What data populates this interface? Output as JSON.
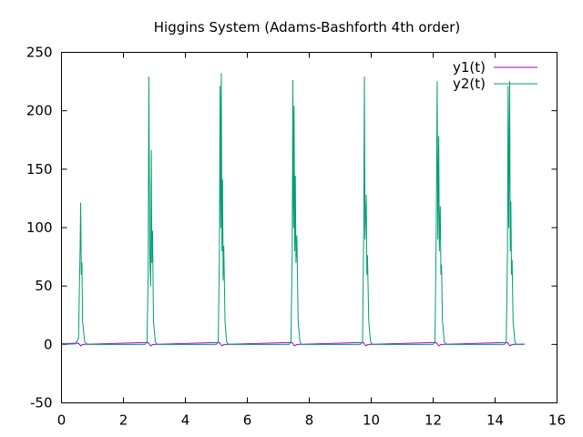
{
  "chart_data": {
    "type": "line",
    "title": "Higgins System (Adams-Bashforth 4th order)",
    "xlabel": "",
    "ylabel": "",
    "xlim": [
      0,
      16
    ],
    "ylim": [
      -50,
      250
    ],
    "xticks": [
      "0",
      "2",
      "4",
      "6",
      "8",
      "10",
      "12",
      "14",
      "16"
    ],
    "yticks": [
      "-50",
      "0",
      "50",
      "100",
      "150",
      "200",
      "250"
    ],
    "grid": false,
    "legend_position": "top-right",
    "colors": {
      "y1": "#9400d3",
      "y2": "#009e73"
    },
    "series": [
      {
        "name": "y1(t)",
        "points": [
          [
            0,
            0.6
          ],
          [
            0.55,
            1.0
          ],
          [
            0.62,
            -1.2
          ],
          [
            0.68,
            0.0
          ],
          [
            0.75,
            0.1
          ],
          [
            2.8,
            1.6
          ],
          [
            2.88,
            -1.2
          ],
          [
            2.95,
            0.0
          ],
          [
            3.05,
            0.1
          ],
          [
            5.1,
            1.6
          ],
          [
            5.18,
            -1.2
          ],
          [
            5.25,
            0.0
          ],
          [
            5.35,
            0.1
          ],
          [
            7.45,
            1.6
          ],
          [
            7.52,
            -1.2
          ],
          [
            7.6,
            0.0
          ],
          [
            7.7,
            0.1
          ],
          [
            9.75,
            1.6
          ],
          [
            9.82,
            -1.2
          ],
          [
            9.9,
            0.0
          ],
          [
            10.0,
            0.1
          ],
          [
            12.1,
            1.6
          ],
          [
            12.18,
            -1.2
          ],
          [
            12.25,
            0.0
          ],
          [
            12.35,
            0.1
          ],
          [
            14.4,
            1.6
          ],
          [
            14.48,
            -1.2
          ],
          [
            14.55,
            0.0
          ],
          [
            14.65,
            0.1
          ],
          [
            14.95,
            0.3
          ]
        ]
      },
      {
        "name": "y2(t)",
        "points": [
          [
            0,
            0
          ],
          [
            0.45,
            0.5
          ],
          [
            0.55,
            5
          ],
          [
            0.6,
            80
          ],
          [
            0.62,
            121
          ],
          [
            0.64,
            60
          ],
          [
            0.66,
            70
          ],
          [
            0.68,
            20
          ],
          [
            0.75,
            2
          ],
          [
            0.85,
            0
          ],
          [
            2.7,
            0
          ],
          [
            2.76,
            2
          ],
          [
            2.8,
            60
          ],
          [
            2.82,
            229
          ],
          [
            2.85,
            80
          ],
          [
            2.88,
            50
          ],
          [
            2.9,
            166
          ],
          [
            2.92,
            70
          ],
          [
            2.94,
            97
          ],
          [
            2.97,
            20
          ],
          [
            3.03,
            2
          ],
          [
            3.1,
            0
          ],
          [
            5.0,
            0
          ],
          [
            5.06,
            2
          ],
          [
            5.1,
            80
          ],
          [
            5.12,
            221
          ],
          [
            5.14,
            100
          ],
          [
            5.16,
            232
          ],
          [
            5.18,
            80
          ],
          [
            5.2,
            141
          ],
          [
            5.22,
            55
          ],
          [
            5.24,
            84
          ],
          [
            5.28,
            20
          ],
          [
            5.33,
            2
          ],
          [
            5.4,
            0
          ],
          [
            7.35,
            0
          ],
          [
            7.41,
            2
          ],
          [
            7.45,
            80
          ],
          [
            7.47,
            226
          ],
          [
            7.49,
            100
          ],
          [
            7.51,
            204
          ],
          [
            7.53,
            80
          ],
          [
            7.55,
            144
          ],
          [
            7.57,
            70
          ],
          [
            7.6,
            93
          ],
          [
            7.64,
            20
          ],
          [
            7.7,
            2
          ],
          [
            7.75,
            0
          ],
          [
            9.65,
            0
          ],
          [
            9.72,
            2
          ],
          [
            9.76,
            100
          ],
          [
            9.78,
            229
          ],
          [
            9.8,
            90
          ],
          [
            9.84,
            128
          ],
          [
            9.86,
            60
          ],
          [
            9.88,
            76
          ],
          [
            9.92,
            20
          ],
          [
            9.98,
            2
          ],
          [
            10.05,
            0
          ],
          [
            12.0,
            0
          ],
          [
            12.06,
            2
          ],
          [
            12.1,
            100
          ],
          [
            12.13,
            225
          ],
          [
            12.15,
            90
          ],
          [
            12.18,
            178
          ],
          [
            12.2,
            80
          ],
          [
            12.23,
            118
          ],
          [
            12.25,
            60
          ],
          [
            12.27,
            68
          ],
          [
            12.3,
            20
          ],
          [
            12.36,
            2
          ],
          [
            12.45,
            0
          ],
          [
            14.3,
            0
          ],
          [
            14.36,
            2
          ],
          [
            14.4,
            80
          ],
          [
            14.42,
            221
          ],
          [
            14.44,
            100
          ],
          [
            14.47,
            225
          ],
          [
            14.49,
            80
          ],
          [
            14.51,
            122
          ],
          [
            14.53,
            60
          ],
          [
            14.55,
            72
          ],
          [
            14.58,
            20
          ],
          [
            14.64,
            2
          ],
          [
            14.7,
            0
          ],
          [
            14.95,
            0
          ]
        ]
      }
    ]
  }
}
